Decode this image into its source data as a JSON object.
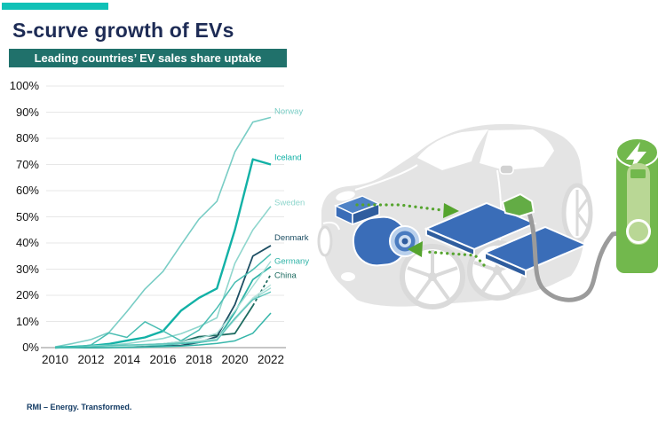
{
  "slide": {
    "title": "S-curve growth of EVs",
    "subtitle": "Leading countries’ EV sales share uptake",
    "footer": "RMI – Energy. Transformed."
  },
  "colors": {
    "accent_bar": "#0fc1b7",
    "title_text": "#1d2b55",
    "subtitle_bg": "#20716b",
    "subtitle_text": "#ffffff",
    "gridline": "#e7e7e7",
    "axis_line": "#c6c6c6",
    "tick_text": "#141414",
    "footer_text": "#123a63",
    "car_body_gray": "#e4e4e4",
    "component_blue": "#3a6db8",
    "component_blue_light": "#b9d0ec",
    "ev_green": "#72b84d",
    "ev_green_light": "#b9d795",
    "arrow_green": "#55a42e",
    "cable_gray": "#9b9b9b"
  },
  "chart_data": {
    "type": "line",
    "title": "Leading countries’ EV sales share uptake",
    "xlabel": "",
    "ylabel": "",
    "x": [
      2010,
      2011,
      2012,
      2013,
      2014,
      2015,
      2016,
      2017,
      2018,
      2019,
      2020,
      2021,
      2022
    ],
    "x_tick_labels": [
      "2010",
      "2012",
      "2014",
      "2016",
      "2018",
      "2020",
      "2022"
    ],
    "y_tick_labels": [
      "100%",
      "90%",
      "80%",
      "70%",
      "60%",
      "50%",
      "40%",
      "30%",
      "20%",
      "10%",
      "0%"
    ],
    "ylim": [
      0,
      100
    ],
    "xlim": [
      2010,
      2022
    ],
    "grid": "horizontal",
    "legend": "end-of-line-labels",
    "series": [
      {
        "name": "norway",
        "label": "Norway",
        "color": "#79cdc5",
        "width": 1.6,
        "label_dy": -7,
        "values": [
          0.3,
          1.6,
          3.1,
          5.8,
          13.8,
          22.4,
          29.1,
          39.2,
          49.1,
          55.9,
          74.8,
          86.2,
          88.0
        ]
      },
      {
        "name": "iceland",
        "label": "Iceland",
        "color": "#12b1a6",
        "width": 2.4,
        "label_dy": -8,
        "values": [
          0,
          0.3,
          0.7,
          1.4,
          2.7,
          3.9,
          6.3,
          14.1,
          19.0,
          22.6,
          45.0,
          72.0,
          70.0
        ]
      },
      {
        "name": "sweden",
        "label": "Sweden",
        "color": "#8fd6cd",
        "width": 1.6,
        "label_dy": -4,
        "values": [
          0,
          0.2,
          0.6,
          0.9,
          1.5,
          2.5,
          3.5,
          5.3,
          8.0,
          11.4,
          32.2,
          45.0,
          54.0
        ]
      },
      {
        "name": "denmark",
        "label": "Denmark",
        "color": "#1d4e63",
        "width": 1.8,
        "label_dy": -9,
        "values": [
          0,
          0,
          0,
          0.1,
          0.2,
          0.3,
          0.6,
          0.8,
          2.0,
          4.2,
          16.4,
          35.0,
          39.0
        ]
      },
      {
        "name": "germany",
        "label": "Germany",
        "color": "#2fb3a7",
        "width": 1.8,
        "label_dy": -6,
        "values": [
          0,
          0.1,
          0.2,
          0.3,
          0.7,
          0.9,
          1.0,
          1.6,
          2.0,
          3.0,
          13.5,
          26.0,
          31.0
        ]
      },
      {
        "name": "china",
        "label": "China",
        "color": "#1d6b60",
        "width": 1.8,
        "label_dy": 1,
        "dashed_tail": true,
        "values": [
          0,
          0,
          0,
          0.1,
          0.3,
          1.0,
          1.4,
          2.2,
          4.2,
          4.7,
          5.4,
          16.0,
          28.0
        ]
      },
      {
        "name": "unlabeled-1",
        "label": "",
        "color": "#49bdb2",
        "width": 1.5,
        "values": [
          0,
          0.1,
          1.0,
          5.6,
          3.9,
          9.9,
          6.4,
          2.6,
          6.7,
          15.1,
          24.9,
          29.8,
          35.8
        ]
      },
      {
        "name": "unlabeled-2",
        "label": "",
        "color": "#a6ded6",
        "width": 1.4,
        "values": [
          0,
          0,
          0.1,
          0.3,
          0.6,
          1.0,
          1.5,
          2.3,
          3.5,
          5.5,
          14.0,
          23.5,
          33.0
        ]
      },
      {
        "name": "unlabeled-3",
        "label": "",
        "color": "#bce4de",
        "width": 1.4,
        "values": [
          0,
          0,
          0.1,
          0.2,
          0.5,
          0.9,
          1.3,
          1.8,
          2.6,
          3.4,
          11.3,
          19.0,
          24.0
        ]
      },
      {
        "name": "unlabeled-4",
        "label": "",
        "color": "#9edcd4",
        "width": 1.4,
        "values": [
          0,
          0,
          0.1,
          0.2,
          0.4,
          1.0,
          1.2,
          1.7,
          2.5,
          3.1,
          10.7,
          18.6,
          22.8
        ]
      },
      {
        "name": "unlabeled-5",
        "label": "",
        "color": "#5ec5bb",
        "width": 1.4,
        "values": [
          0,
          0.1,
          0.3,
          0.8,
          1.0,
          1.2,
          1.4,
          1.7,
          2.1,
          2.8,
          11.2,
          18.3,
          21.3
        ]
      },
      {
        "name": "unlabeled-6",
        "label": "",
        "color": "#35b5a9",
        "width": 1.5,
        "values": [
          0,
          0,
          0,
          0,
          0.1,
          0.2,
          0.4,
          0.6,
          1.0,
          1.6,
          2.6,
          5.5,
          13.2
        ]
      }
    ]
  }
}
